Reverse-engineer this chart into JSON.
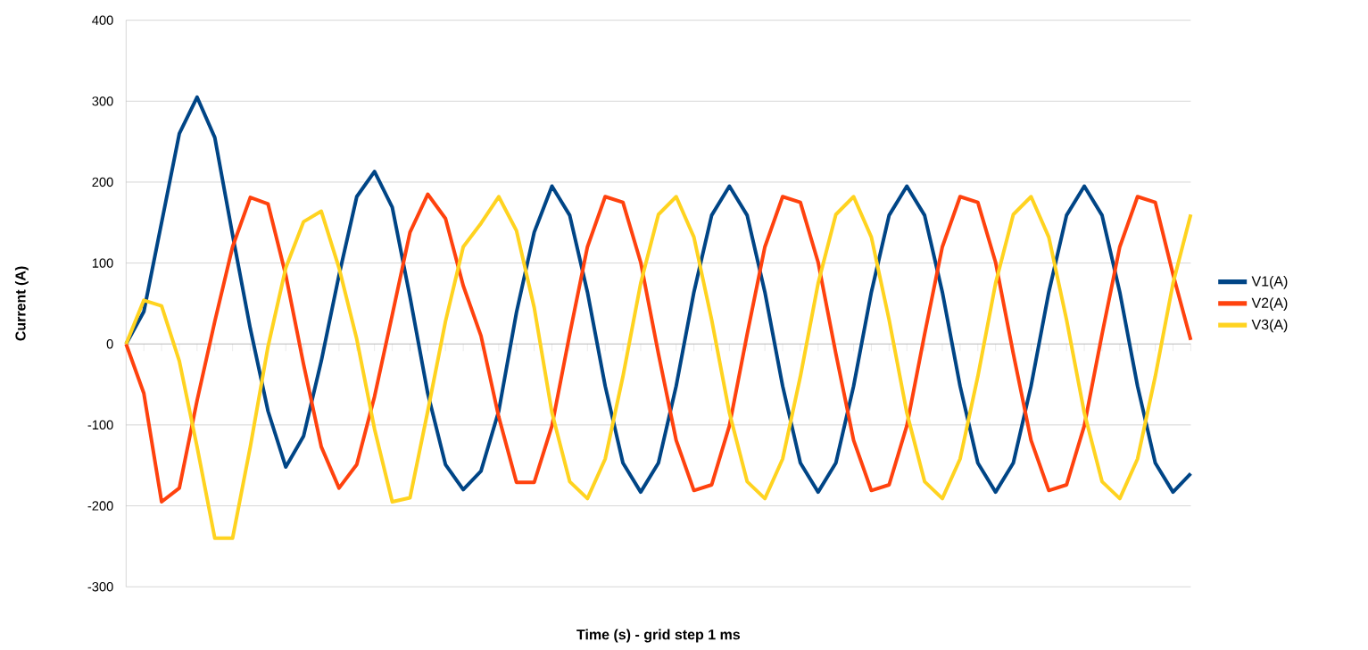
{
  "chart_data": {
    "type": "line",
    "xlabel": "Time (s) - grid step 1 ms",
    "ylabel": "Current (A)",
    "categories": [
      null,
      null,
      null,
      null,
      null,
      null,
      null,
      null,
      null,
      null,
      null,
      null,
      null,
      null,
      null,
      null,
      null,
      null,
      null,
      null,
      null,
      null,
      null,
      null,
      null,
      null,
      null,
      null,
      null,
      null,
      null,
      null,
      null,
      null,
      null,
      null,
      null,
      null,
      null,
      null,
      null,
      null,
      null,
      null,
      null,
      null,
      null,
      null,
      null,
      null,
      null,
      null,
      null,
      null,
      null,
      null,
      null,
      null,
      null,
      null,
      null
    ],
    "series": [
      {
        "name": "V1(A)",
        "color": "#004586",
        "values": [
          0,
          40,
          150,
          260,
          305,
          255,
          135,
          19,
          -83,
          -152,
          -114,
          -21,
          85,
          182,
          213,
          169,
          58,
          -61,
          -149,
          -180,
          -157,
          -83,
          39,
          138,
          195,
          159,
          64,
          -52,
          -147,
          -183,
          -147,
          -52,
          64,
          159,
          195,
          159,
          64,
          -52,
          -147,
          -183,
          -147,
          -52,
          64,
          159,
          195,
          159,
          64,
          -52,
          -147,
          -183,
          -147,
          -52,
          64,
          159,
          195,
          159,
          64,
          -52,
          -147,
          -183,
          -160
        ]
      },
      {
        "name": "V2(A)",
        "color": "#ff420e",
        "values": [
          0,
          -61,
          -195,
          -178,
          -70,
          28,
          120,
          181,
          173,
          85,
          -25,
          -127,
          -178,
          -149,
          -65,
          36,
          138,
          185,
          155,
          72,
          10,
          -90,
          -171,
          -171,
          -101,
          12,
          120,
          182,
          175,
          101,
          -12,
          -119,
          -181,
          -174,
          -101,
          12,
          120,
          182,
          175,
          101,
          -12,
          -119,
          -181,
          -174,
          -101,
          12,
          120,
          182,
          175,
          101,
          -12,
          -119,
          -181,
          -174,
          -101,
          12,
          120,
          182,
          175,
          86,
          5
        ]
      },
      {
        "name": "V3(A)",
        "color": "#ffd320",
        "values": [
          0,
          54,
          47,
          -21,
          -127,
          -240,
          -240,
          -127,
          -3,
          94,
          151,
          164,
          94,
          6,
          -105,
          -195,
          -190,
          -83,
          28,
          120,
          149,
          182,
          140,
          45,
          -85,
          -170,
          -191,
          -142,
          -40,
          75,
          160,
          182,
          132,
          30,
          -85,
          -170,
          -191,
          -142,
          -40,
          75,
          160,
          182,
          132,
          30,
          -85,
          -170,
          -191,
          -142,
          -40,
          75,
          160,
          182,
          132,
          30,
          -85,
          -170,
          -191,
          -142,
          -40,
          75,
          160
        ]
      }
    ],
    "ylim": [
      -300,
      400
    ],
    "yticks": [
      -300,
      -200,
      -100,
      0,
      100,
      200,
      300,
      400
    ],
    "grid": "y",
    "legend": "right",
    "tick_labels": "y",
    "marker": "none",
    "line_style": "solid"
  }
}
